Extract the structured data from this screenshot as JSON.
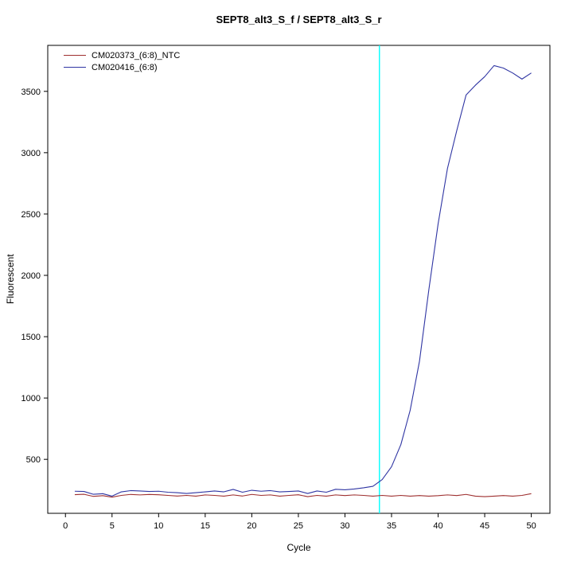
{
  "chart_data": {
    "type": "line",
    "title": "SEPT8_alt3_S_f / SEPT8_alt3_S_r",
    "xlabel": "Cycle",
    "ylabel": "Fluorescent",
    "xlim": [
      -1.9,
      52
    ],
    "ylim": [
      60,
      3875
    ],
    "x_ticks": [
      0,
      5,
      10,
      15,
      20,
      25,
      30,
      35,
      40,
      45,
      50
    ],
    "y_ticks": [
      500,
      1000,
      1500,
      2000,
      2500,
      3000,
      3500
    ],
    "grid": false,
    "legend_position": "top-left",
    "threshold_line": {
      "x": 33.7,
      "color": "#00ffff"
    },
    "x": [
      1,
      2,
      3,
      4,
      5,
      6,
      7,
      8,
      9,
      10,
      11,
      12,
      13,
      14,
      15,
      16,
      17,
      18,
      19,
      20,
      21,
      22,
      23,
      24,
      25,
      26,
      27,
      28,
      29,
      30,
      31,
      32,
      33,
      34,
      35,
      36,
      37,
      38,
      39,
      40,
      41,
      42,
      43,
      44,
      45,
      46,
      47,
      48,
      49,
      50
    ],
    "series": [
      {
        "name": "CM020373_(6:8)_NTC",
        "color": "#9e2f2f",
        "values": [
          212,
          215,
          198,
          204,
          192,
          206,
          214,
          210,
          214,
          211,
          206,
          201,
          206,
          200,
          210,
          206,
          200,
          210,
          201,
          214,
          206,
          210,
          200,
          206,
          211,
          196,
          206,
          200,
          210,
          205,
          210,
          206,
          200,
          206,
          200,
          206,
          200,
          205,
          200,
          204,
          210,
          205,
          214,
          200,
          196,
          200,
          205,
          200,
          206,
          220
        ]
      },
      {
        "name": "CM020416_(6:8)",
        "color": "#2f35a3",
        "values": [
          240,
          238,
          215,
          220,
          200,
          235,
          245,
          242,
          238,
          240,
          232,
          228,
          222,
          228,
          235,
          242,
          235,
          255,
          232,
          248,
          240,
          245,
          235,
          238,
          242,
          222,
          242,
          232,
          256,
          252,
          258,
          268,
          280,
          335,
          440,
          620,
          900,
          1300,
          1880,
          2420,
          2870,
          3180,
          3470,
          3550,
          3620,
          3710,
          3690,
          3650,
          3600,
          3650
        ]
      }
    ]
  }
}
